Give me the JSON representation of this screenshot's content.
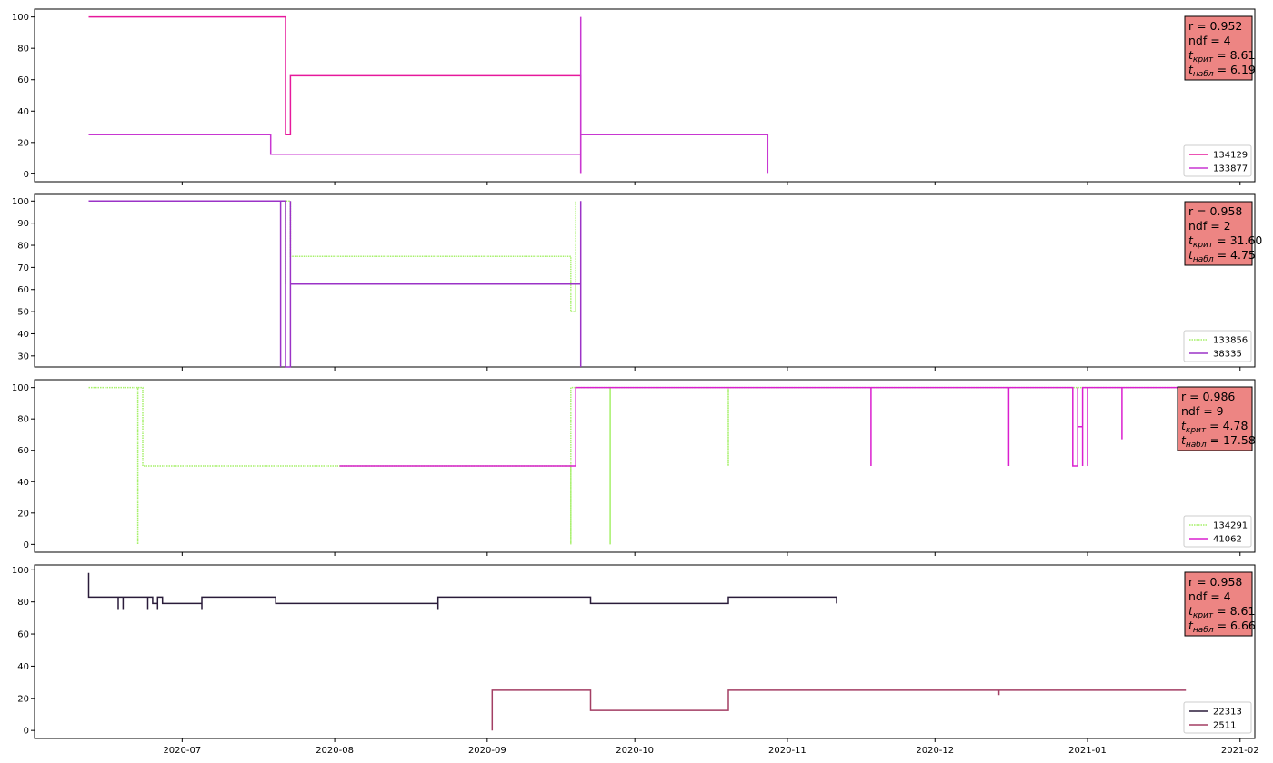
{
  "chart_data": [
    {
      "type": "line",
      "ylim": [
        -5,
        105
      ],
      "yticks": [
        0,
        20,
        40,
        60,
        80,
        100
      ],
      "xlim": [
        "2020-06-01",
        "2021-02-04"
      ],
      "grid": false,
      "legend": "bottom-right",
      "stats": {
        "r": "r = 0.952",
        "ndf": "ndf = 4",
        "tcrit": "8.61",
        "tobs": "6.19"
      },
      "series": [
        {
          "name": "134129",
          "color": "#e6199c",
          "dash": false,
          "points": [
            [
              "2020-06-12",
              100
            ],
            [
              "2020-07-22",
              100
            ],
            [
              "2020-07-22",
              25
            ],
            [
              "2020-07-22",
              100
            ],
            [
              "2020-07-22",
              25
            ],
            [
              "2020-07-23",
              25
            ],
            [
              "2020-07-23",
              62.5
            ],
            [
              "2020-09-20",
              62.5
            ],
            [
              "2020-09-20",
              0
            ]
          ]
        },
        {
          "name": "133877",
          "color": "#c837d2",
          "dash": false,
          "points": [
            [
              "2020-06-12",
              25
            ],
            [
              "2020-07-19",
              25
            ],
            [
              "2020-07-19",
              12.5
            ],
            [
              "2020-09-20",
              12.5
            ],
            [
              "2020-09-20",
              0
            ],
            [
              "2020-09-20",
              100
            ],
            [
              "2020-09-20",
              25
            ],
            [
              "2020-10-28",
              25
            ],
            [
              "2020-10-28",
              0
            ]
          ]
        }
      ]
    },
    {
      "type": "line",
      "ylim": [
        25,
        103
      ],
      "yticks": [
        30,
        40,
        50,
        60,
        70,
        80,
        90,
        100
      ],
      "xlim": [
        "2020-06-01",
        "2021-02-04"
      ],
      "grid": false,
      "legend": "bottom-right",
      "stats": {
        "r": "r = 0.958",
        "ndf": "ndf = 2",
        "tcrit": "31.60",
        "tobs": "4.75"
      },
      "series": [
        {
          "name": "133856",
          "color": "#a6f06a",
          "dash": true,
          "points": [
            [
              "2020-06-12",
              100
            ],
            [
              "2020-07-22",
              100
            ],
            [
              "2020-07-22",
              62.5
            ],
            [
              "2020-07-22",
              100
            ],
            [
              "2020-07-23",
              100
            ],
            [
              "2020-07-23",
              75
            ],
            [
              "2020-09-18",
              75
            ],
            [
              "2020-09-18",
              50
            ],
            [
              "2020-09-19",
              50
            ],
            [
              "2020-09-19",
              100
            ],
            [
              "2020-09-19",
              50
            ],
            [
              "2020-09-19",
              62.5
            ],
            [
              "2020-09-20",
              62.5
            ]
          ]
        },
        {
          "name": "38335",
          "color": "#9b33c7",
          "dash": false,
          "points": [
            [
              "2020-06-12",
              100
            ],
            [
              "2020-07-21",
              100
            ],
            [
              "2020-07-21",
              25
            ],
            [
              "2020-07-21",
              100
            ],
            [
              "2020-07-22",
              100
            ],
            [
              "2020-07-22",
              25
            ],
            [
              "2020-07-23",
              25
            ],
            [
              "2020-07-23",
              100
            ],
            [
              "2020-07-23",
              62.5
            ],
            [
              "2020-09-20",
              62.5
            ],
            [
              "2020-09-20",
              100
            ],
            [
              "2020-09-20",
              25
            ]
          ]
        }
      ]
    },
    {
      "type": "line",
      "ylim": [
        -5,
        105
      ],
      "yticks": [
        0,
        20,
        40,
        60,
        80,
        100
      ],
      "xlim": [
        "2020-06-01",
        "2021-02-04"
      ],
      "grid": false,
      "legend": "bottom-right",
      "stats": {
        "r": "r = 0.986",
        "ndf": "ndf = 9",
        "tcrit": "4.78",
        "tobs": "17.58"
      },
      "series": [
        {
          "name": "134291",
          "color": "#a6f06a",
          "dash": true,
          "points": [
            [
              "2020-06-12",
              100
            ],
            [
              "2020-06-22",
              100
            ],
            [
              "2020-06-22",
              0
            ],
            [
              "2020-06-22",
              100
            ],
            [
              "2020-06-23",
              100
            ],
            [
              "2020-06-23",
              50
            ],
            [
              "2020-09-18",
              50
            ],
            [
              "2020-09-18",
              0
            ],
            [
              "2020-09-18",
              100
            ],
            [
              "2020-09-26",
              100
            ],
            [
              "2020-09-26",
              0
            ],
            [
              "2020-09-26",
              100
            ],
            [
              "2020-10-20",
              100
            ],
            [
              "2020-10-20",
              50
            ],
            [
              "2020-10-20",
              100
            ],
            [
              "2021-01-20",
              100
            ]
          ]
        },
        {
          "name": "41062",
          "color": "#da20cf",
          "dash": false,
          "points": [
            [
              "2020-08-02",
              50
            ],
            [
              "2020-09-19",
              50
            ],
            [
              "2020-09-19",
              100
            ],
            [
              "2020-09-19",
              50
            ],
            [
              "2020-09-19",
              100
            ],
            [
              "2020-11-18",
              100
            ],
            [
              "2020-11-18",
              50
            ],
            [
              "2020-11-18",
              100
            ],
            [
              "2020-12-16",
              100
            ],
            [
              "2020-12-16",
              50
            ],
            [
              "2020-12-16",
              100
            ],
            [
              "2020-12-29",
              100
            ],
            [
              "2020-12-29",
              50
            ],
            [
              "2020-12-29",
              100
            ],
            [
              "2020-12-29",
              50
            ],
            [
              "2020-12-30",
              50
            ],
            [
              "2020-12-30",
              100
            ],
            [
              "2020-12-30",
              75
            ],
            [
              "2020-12-31",
              75
            ],
            [
              "2020-12-31",
              50
            ],
            [
              "2020-12-31",
              100
            ],
            [
              "2021-01-01",
              100
            ],
            [
              "2021-01-01",
              50
            ],
            [
              "2021-01-01",
              100
            ],
            [
              "2021-01-08",
              100
            ],
            [
              "2021-01-08",
              67
            ],
            [
              "2021-01-08",
              100
            ],
            [
              "2021-01-20",
              100
            ],
            [
              "2021-01-20",
              75
            ]
          ]
        }
      ]
    },
    {
      "type": "line",
      "ylim": [
        -5,
        103
      ],
      "yticks": [
        0,
        20,
        40,
        60,
        80,
        100
      ],
      "xlim": [
        "2020-06-01",
        "2021-02-04"
      ],
      "grid": false,
      "legend": "bottom-right",
      "stats": {
        "r": "r = 0.958",
        "ndf": "ndf = 4",
        "tcrit": "8.61",
        "tobs": "6.66"
      },
      "series": [
        {
          "name": "22313",
          "color": "#2a1c3a",
          "dash": false,
          "points": [
            [
              "2020-06-12",
              98
            ],
            [
              "2020-06-12",
              83
            ],
            [
              "2020-06-18",
              83
            ],
            [
              "2020-06-18",
              75
            ],
            [
              "2020-06-18",
              83
            ],
            [
              "2020-06-19",
              83
            ],
            [
              "2020-06-19",
              75
            ],
            [
              "2020-06-19",
              83
            ],
            [
              "2020-06-24",
              83
            ],
            [
              "2020-06-24",
              75
            ],
            [
              "2020-06-24",
              83
            ],
            [
              "2020-06-25",
              83
            ],
            [
              "2020-06-25",
              79
            ],
            [
              "2020-06-26",
              79
            ],
            [
              "2020-06-26",
              75
            ],
            [
              "2020-06-26",
              83
            ],
            [
              "2020-06-27",
              83
            ],
            [
              "2020-06-27",
              79
            ],
            [
              "2020-07-05",
              79
            ],
            [
              "2020-07-05",
              75
            ],
            [
              "2020-07-05",
              83
            ],
            [
              "2020-07-20",
              83
            ],
            [
              "2020-07-20",
              79
            ],
            [
              "2020-08-22",
              79
            ],
            [
              "2020-08-22",
              75
            ],
            [
              "2020-08-22",
              83
            ],
            [
              "2020-09-22",
              83
            ],
            [
              "2020-09-22",
              79
            ],
            [
              "2020-10-20",
              79
            ],
            [
              "2020-10-20",
              83
            ],
            [
              "2020-11-11",
              83
            ],
            [
              "2020-11-11",
              79
            ]
          ]
        },
        {
          "name": "2511",
          "color": "#a33f64",
          "dash": false,
          "points": [
            [
              "2020-09-02",
              0
            ],
            [
              "2020-09-02",
              25
            ],
            [
              "2020-09-22",
              25
            ],
            [
              "2020-09-22",
              12.5
            ],
            [
              "2020-10-20",
              12.5
            ],
            [
              "2020-10-20",
              25
            ],
            [
              "2020-12-14",
              25
            ],
            [
              "2020-12-14",
              22
            ],
            [
              "2020-12-14",
              25
            ],
            [
              "2021-01-21",
              25
            ]
          ]
        }
      ]
    }
  ],
  "xaxis": {
    "ticks": [
      "2020-07-01",
      "2020-08-01",
      "2020-09-01",
      "2020-10-01",
      "2020-11-01",
      "2020-12-01",
      "2021-01-01",
      "2021-02-01"
    ],
    "tick_labels": [
      "2020-07",
      "2020-08",
      "2020-09",
      "2020-10",
      "2020-11",
      "2020-12",
      "2021-01",
      "2021-02"
    ]
  },
  "style": {
    "statbox_fill": "#ed8583",
    "axes_color": "#000000"
  }
}
